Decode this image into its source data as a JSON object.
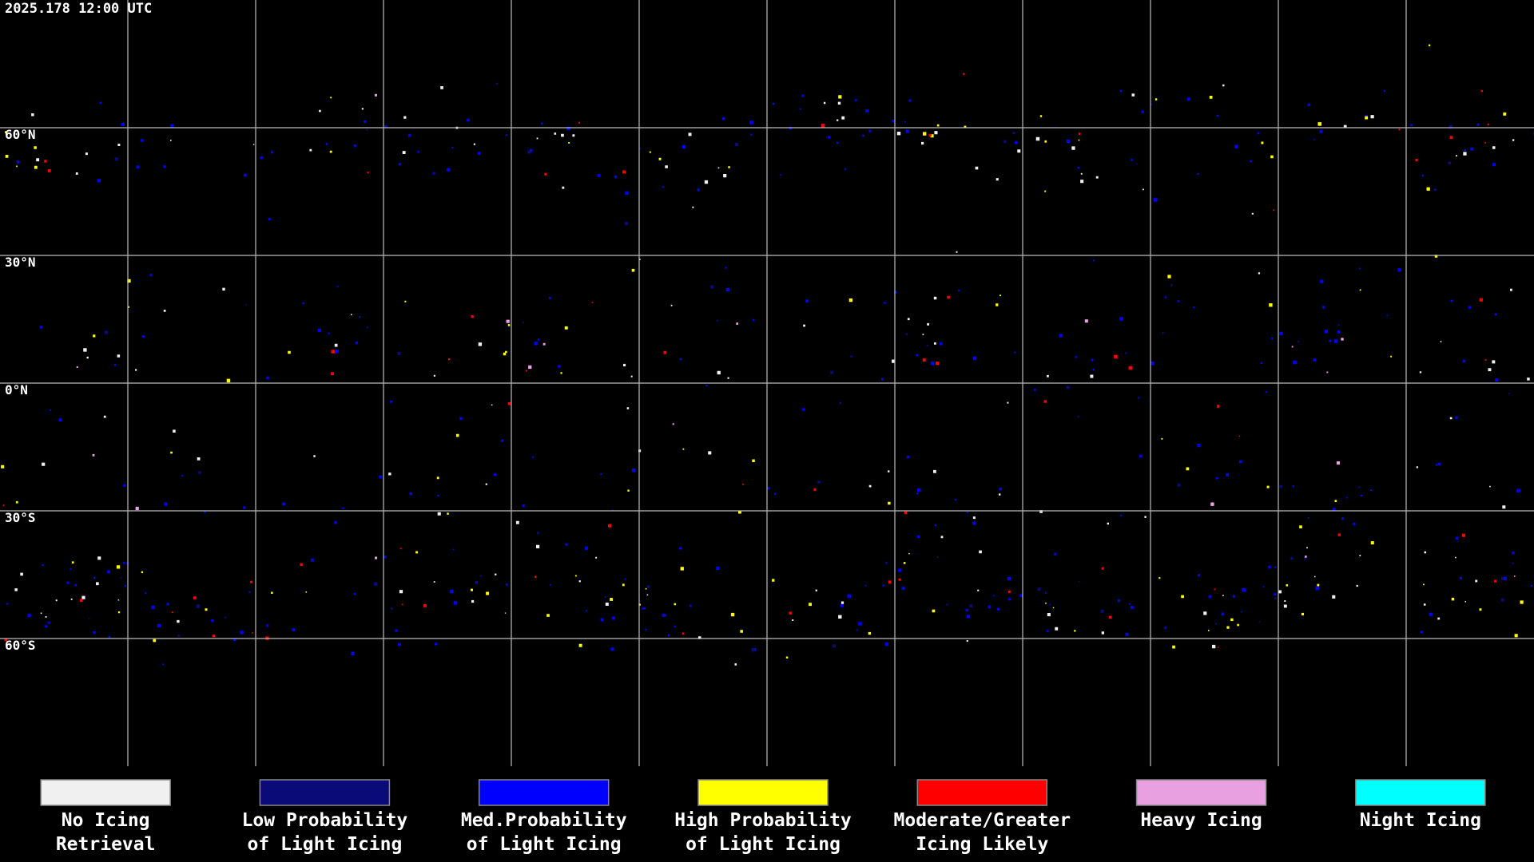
{
  "timestamp": "2025.178 12:00 UTC",
  "latitude_labels": [
    "60°N",
    "30°N",
    "0°N",
    "30°S",
    "60°S"
  ],
  "legend": [
    {
      "label": [
        "No Icing",
        "Retrieval"
      ],
      "color": "#f0f0f0"
    },
    {
      "label": [
        "Low Probability",
        "of Light Icing"
      ],
      "color": "#0a0a78"
    },
    {
      "label": [
        "Med.Probability",
        "of Light Icing"
      ],
      "color": "#0000ff"
    },
    {
      "label": [
        "High Probability",
        "of Light Icing"
      ],
      "color": "#ffff00"
    },
    {
      "label": [
        "Moderate/Greater",
        "Icing Likely"
      ],
      "color": "#ff0000"
    },
    {
      "label": [
        "Heavy Icing"
      ],
      "color": "#e8a0e0"
    },
    {
      "label": [
        "Night Icing"
      ],
      "color": "#00ffff"
    }
  ]
}
